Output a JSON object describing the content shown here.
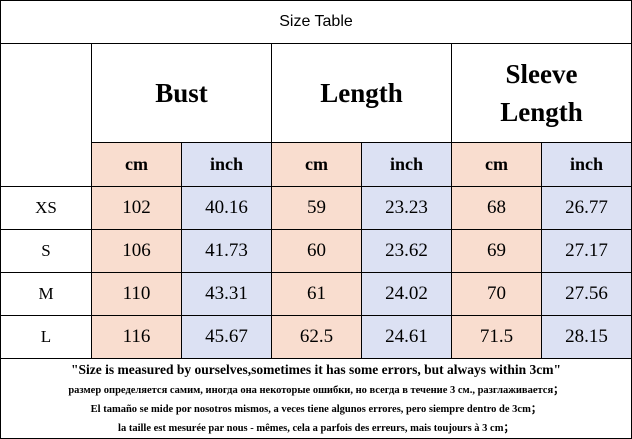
{
  "title": "Size Table",
  "header": {
    "groups": [
      "Bust",
      "Length",
      "Sleeve Length"
    ],
    "units": [
      "cm",
      "inch",
      "cm",
      "inch",
      "cm",
      "inch"
    ]
  },
  "rows": [
    [
      "XS",
      102,
      40.16,
      59,
      23.23,
      68,
      26.77
    ],
    [
      "S",
      106,
      41.73,
      60,
      23.62,
      69,
      27.17
    ],
    [
      "M",
      110,
      43.31,
      61,
      24.02,
      70,
      27.56
    ],
    [
      "L",
      116,
      45.67,
      62.5,
      24.61,
      71.5,
      28.15
    ]
  ],
  "notes": [
    "\"Size is measured by ourselves,sometimes it has some errors, but always within 3cm\"",
    "размер определяется самим, иногда она некоторые ошибки, но всегда в течение 3 см., разглаживается；",
    "El tamaño se mide por nosotros mismos, a veces tiene algunos errores, pero siempre dentro de 3cm；",
    "la taille est mesurée par nous - mêmes, cela a parfois des erreurs, mais toujours à 3 cm；"
  ]
}
